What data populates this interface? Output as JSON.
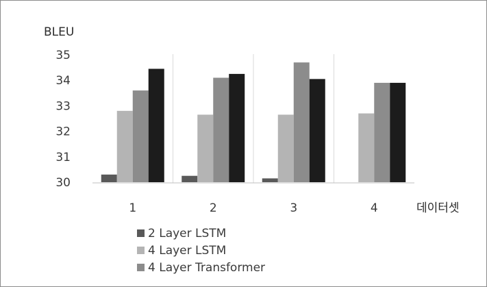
{
  "chart_data": {
    "type": "bar",
    "ylabel": "BLEU",
    "xlabel": "데이터셋",
    "categories": [
      "1",
      "2",
      "3",
      "4"
    ],
    "ylim": [
      30,
      35
    ],
    "yticks": [
      30,
      31,
      32,
      33,
      34,
      35
    ],
    "grid": false,
    "legend_position": "bottom-left",
    "series": [
      {
        "name": "2 Layer LSTM",
        "color": "#595959",
        "values": [
          30.3,
          30.25,
          30.15,
          null
        ]
      },
      {
        "name": "4 Layer LSTM",
        "color": "#b4b4b4",
        "values": [
          32.8,
          32.65,
          32.65,
          32.7
        ]
      },
      {
        "name": "4 Layer Transformer",
        "color": "#8c8c8c",
        "values": [
          33.6,
          34.1,
          34.7,
          33.9
        ]
      },
      {
        "name": "",
        "color": "#1c1c1c",
        "values": [
          34.45,
          34.25,
          34.05,
          33.9
        ]
      }
    ]
  }
}
